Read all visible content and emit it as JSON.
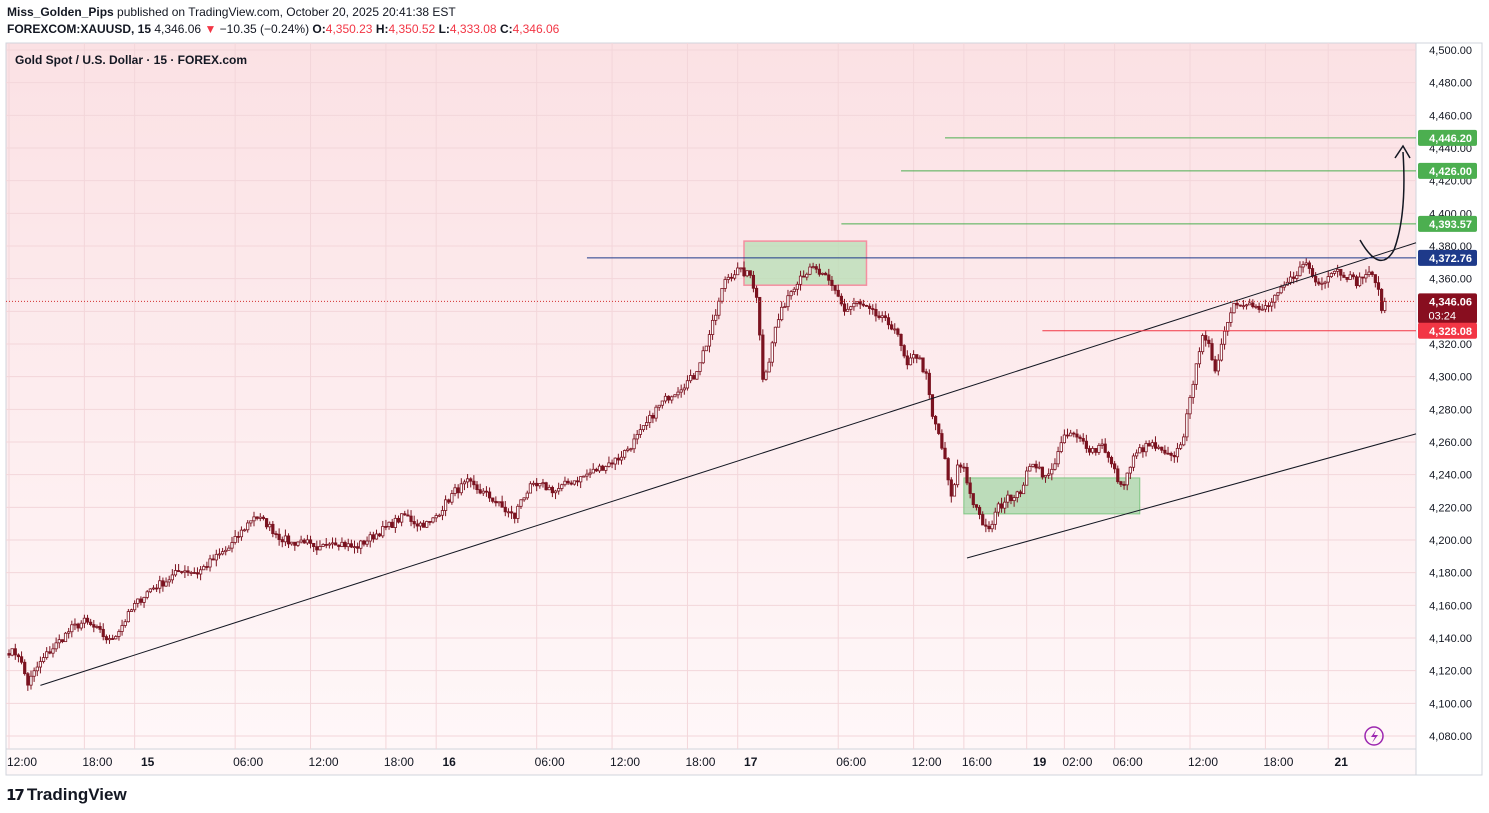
{
  "header": {
    "author": "Miss_Golden_Pips",
    "published": "published on TradingView.com, October 20, 2025 20:41:38 EST",
    "symbol": "FOREXCOM:XAUUSD, 15",
    "last": "4,346.06",
    "change": "−10.35 (−0.24%)",
    "o_label": "O:",
    "o": "4,350.23",
    "h_label": "H:",
    "h": "4,350.52",
    "l_label": "L:",
    "l": "4,333.08",
    "c_label": "C:",
    "c": "4,346.06"
  },
  "footer": {
    "brand": "TradingView"
  },
  "chart_data": {
    "type": "candlestick",
    "title": "Gold Spot / U.S. Dollar · 15 · FOREX.com",
    "y_ticks": [
      4080,
      4100,
      4120,
      4140,
      4160,
      4180,
      4200,
      4220,
      4240,
      4260,
      4280,
      4300,
      4320,
      4340,
      4360,
      4380,
      4400,
      4420,
      4440,
      4460,
      4480,
      4500
    ],
    "y_tick_labels": [
      "4,080.00",
      "4,100.00",
      "4,120.00",
      "4,140.00",
      "4,160.00",
      "4,180.00",
      "4,200.00",
      "4,220.00",
      "4,240.00",
      "4,260.00",
      "4,280.00",
      "4,300.00",
      "4,320.00",
      "4,340.00",
      "4,360.00",
      "4,380.00",
      "4,400.00",
      "4,420.00",
      "4,440.00",
      "4,460.00",
      "4,480.00",
      "4,500.00"
    ],
    "ylim": [
      4068,
      4507
    ],
    "x_ticks": [
      {
        "label": "12:00",
        "bar": 0,
        "bold": false
      },
      {
        "label": "18:00",
        "bar": 24,
        "bold": false
      },
      {
        "label": "15",
        "bar": 40,
        "bold": true
      },
      {
        "label": "06:00",
        "bar": 72,
        "bold": false
      },
      {
        "label": "12:00",
        "bar": 96,
        "bold": false
      },
      {
        "label": "18:00",
        "bar": 120,
        "bold": false
      },
      {
        "label": "16",
        "bar": 136,
        "bold": true
      },
      {
        "label": "06:00",
        "bar": 168,
        "bold": false
      },
      {
        "label": "12:00",
        "bar": 192,
        "bold": false
      },
      {
        "label": "18:00",
        "bar": 216,
        "bold": false
      },
      {
        "label": "17",
        "bar": 232,
        "bold": true
      },
      {
        "label": "06:00",
        "bar": 264,
        "bold": false
      },
      {
        "label": "12:00",
        "bar": 288,
        "bold": false
      },
      {
        "label": "16:00",
        "bar": 304,
        "bold": false
      },
      {
        "label": "19",
        "bar": 324,
        "bold": true
      },
      {
        "label": "02:00",
        "bar": 336,
        "bold": false
      },
      {
        "label": "06:00",
        "bar": 352,
        "bold": false
      },
      {
        "label": "12:00",
        "bar": 376,
        "bold": false
      },
      {
        "label": "18:00",
        "bar": 400,
        "bold": false
      },
      {
        "label": "21",
        "bar": 420,
        "bold": true
      }
    ],
    "anchors": [
      [
        0,
        4132
      ],
      [
        3,
        4130
      ],
      [
        6,
        4112
      ],
      [
        9,
        4122
      ],
      [
        12,
        4130
      ],
      [
        16,
        4138
      ],
      [
        20,
        4146
      ],
      [
        24,
        4150
      ],
      [
        28,
        4145
      ],
      [
        32,
        4138
      ],
      [
        35,
        4145
      ],
      [
        40,
        4160
      ],
      [
        45,
        4170
      ],
      [
        50,
        4175
      ],
      [
        55,
        4182
      ],
      [
        60,
        4180
      ],
      [
        65,
        4188
      ],
      [
        70,
        4195
      ],
      [
        74,
        4205
      ],
      [
        78,
        4215
      ],
      [
        82,
        4210
      ],
      [
        86,
        4202
      ],
      [
        90,
        4198
      ],
      [
        94,
        4200
      ],
      [
        98,
        4192
      ],
      [
        102,
        4200
      ],
      [
        106,
        4198
      ],
      [
        110,
        4195
      ],
      [
        114,
        4200
      ],
      [
        118,
        4205
      ],
      [
        122,
        4210
      ],
      [
        126,
        4215
      ],
      [
        130,
        4210
      ],
      [
        134,
        4210
      ],
      [
        138,
        4220
      ],
      [
        142,
        4230
      ],
      [
        146,
        4235
      ],
      [
        150,
        4230
      ],
      [
        154,
        4225
      ],
      [
        158,
        4218
      ],
      [
        161,
        4214
      ],
      [
        163,
        4225
      ],
      [
        166,
        4232
      ],
      [
        170,
        4233
      ],
      [
        174,
        4230
      ],
      [
        178,
        4235
      ],
      [
        182,
        4238
      ],
      [
        186,
        4242
      ],
      [
        190,
        4246
      ],
      [
        194,
        4250
      ],
      [
        198,
        4258
      ],
      [
        202,
        4268
      ],
      [
        206,
        4280
      ],
      [
        210,
        4288
      ],
      [
        214,
        4294
      ],
      [
        218,
        4300
      ],
      [
        222,
        4320
      ],
      [
        225,
        4338
      ],
      [
        228,
        4360
      ],
      [
        232,
        4365
      ],
      [
        236,
        4362
      ],
      [
        238,
        4350
      ],
      [
        240,
        4300
      ],
      [
        242,
        4310
      ],
      [
        244,
        4330
      ],
      [
        248,
        4350
      ],
      [
        252,
        4362
      ],
      [
        256,
        4366
      ],
      [
        260,
        4360
      ],
      [
        262,
        4355
      ],
      [
        264,
        4350
      ],
      [
        266,
        4340
      ],
      [
        270,
        4345
      ],
      [
        274,
        4340
      ],
      [
        278,
        4335
      ],
      [
        282,
        4330
      ],
      [
        284,
        4318
      ],
      [
        286,
        4305
      ],
      [
        288,
        4315
      ],
      [
        290,
        4310
      ],
      [
        292,
        4300
      ],
      [
        294,
        4275
      ],
      [
        296,
        4265
      ],
      [
        298,
        4248
      ],
      [
        300,
        4225
      ],
      [
        302,
        4245
      ],
      [
        304,
        4245
      ],
      [
        306,
        4228
      ],
      [
        308,
        4218
      ],
      [
        310,
        4210
      ],
      [
        312,
        4205
      ],
      [
        314,
        4218
      ],
      [
        316,
        4222
      ],
      [
        318,
        4228
      ],
      [
        320,
        4225
      ],
      [
        322,
        4230
      ],
      [
        324,
        4240
      ],
      [
        326,
        4248
      ],
      [
        328,
        4244
      ],
      [
        330,
        4238
      ],
      [
        332,
        4242
      ],
      [
        334,
        4255
      ],
      [
        336,
        4262
      ],
      [
        338,
        4265
      ],
      [
        340,
        4262
      ],
      [
        342,
        4260
      ],
      [
        344,
        4256
      ],
      [
        346,
        4255
      ],
      [
        348,
        4260
      ],
      [
        350,
        4250
      ],
      [
        352,
        4242
      ],
      [
        354,
        4232
      ],
      [
        356,
        4240
      ],
      [
        358,
        4250
      ],
      [
        360,
        4255
      ],
      [
        362,
        4257
      ],
      [
        364,
        4258
      ],
      [
        366,
        4255
      ],
      [
        368,
        4252
      ],
      [
        370,
        4250
      ],
      [
        372,
        4255
      ],
      [
        374,
        4265
      ],
      [
        376,
        4285
      ],
      [
        378,
        4310
      ],
      [
        380,
        4323
      ],
      [
        382,
        4318
      ],
      [
        384,
        4305
      ],
      [
        386,
        4320
      ],
      [
        388,
        4335
      ],
      [
        390,
        4345
      ],
      [
        394,
        4346
      ],
      [
        398,
        4340
      ],
      [
        402,
        4345
      ],
      [
        406,
        4355
      ],
      [
        410,
        4364
      ],
      [
        413,
        4370
      ],
      [
        416,
        4358
      ],
      [
        419,
        4360
      ],
      [
        422,
        4366
      ],
      [
        426,
        4362
      ],
      [
        429,
        4358
      ],
      [
        432,
        4363
      ],
      [
        435,
        4360
      ],
      [
        437,
        4342
      ],
      [
        438,
        4346.06
      ]
    ],
    "last_price": 4346.06,
    "price_badges": [
      {
        "label": "4,446.20",
        "value": 4446.2,
        "color": "#4caf50"
      },
      {
        "label": "4,426.00",
        "value": 4426.0,
        "color": "#4caf50"
      },
      {
        "label": "4,393.57",
        "value": 4393.57,
        "color": "#4caf50"
      },
      {
        "label": "4,372.76",
        "value": 4372.76,
        "color": "#1e3a8a"
      },
      {
        "label": "4,346.06",
        "value": 4346.06,
        "color": "#880e1f"
      },
      {
        "label": "4,328.08",
        "value": 4328.08,
        "color": "#f23645"
      }
    ],
    "countdown": "03:24",
    "colors": {
      "candle": "#7b1320",
      "background_top": "#fbe1e4",
      "background_bottom": "#fff7f8",
      "target": "#4caf50",
      "resistance": "#1e3a8a",
      "stop": "#f23645",
      "zone": "#a5d6a7"
    }
  }
}
